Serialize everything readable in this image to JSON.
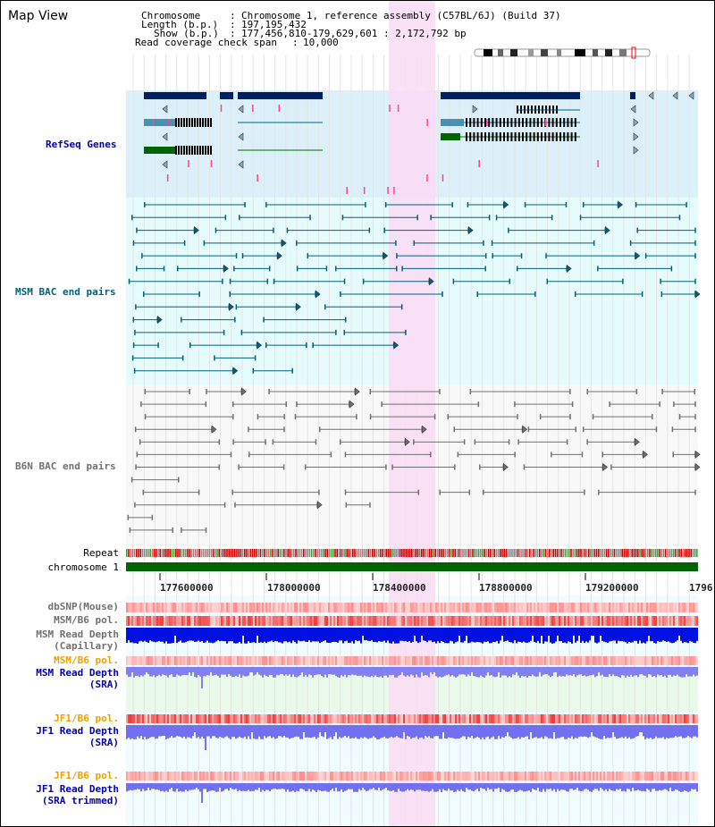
{
  "window_title": "Map View",
  "header": {
    "chromosome_label": "Chromosome",
    "chromosome_value": "Chromosome 1, reference assembly (C57BL/6J) (Build 37)",
    "length_label": "Length (b.p.)",
    "length_value": "197,195,432",
    "show_label": "Show (b.p.)",
    "show_value": "177,456,810-179,629,601 : 2,172,792 bp",
    "coverage_label": "Read coverage check span",
    "coverage_value": "10,000"
  },
  "tracks": {
    "refseq": "RefSeq Genes",
    "msm_bac": "MSM BAC end pairs",
    "b6n_bac": "B6N BAC end pairs",
    "repeat": "Repeat",
    "chromosome": "chromosome 1",
    "dbsnp": "dbSNP(Mouse)",
    "msm_b6_pol": "MSM/B6 pol.",
    "msm_read_depth_cap_1": "MSM Read Depth",
    "msm_read_depth_cap_2": "(Capillary)",
    "msm_b6_pol_2": "MSM/B6 pol.",
    "msm_read_depth_sra_1": "MSM Read Depth",
    "msm_read_depth_sra_2": "(SRA)",
    "jf1_b6_pol": "JF1/B6 pol.",
    "jf1_read_depth_sra_1": "JF1 Read Depth",
    "jf1_read_depth_sra_2": "(SRA)",
    "jf1_b6_pol_2": "JF1/B6 pol.",
    "jf1_read_depth_trim_1": "JF1 Read Depth",
    "jf1_read_depth_trim_2": "(SRA trimmed)"
  },
  "axis": {
    "ticks": [
      "177600000",
      "178000000",
      "178400000",
      "178800000",
      "179200000",
      "1796"
    ]
  },
  "colors": {
    "refseq_bg": "#dcf0fa",
    "msm_bg": "#e6fcfc",
    "b6n_bg": "#f8f8f8",
    "highlight": "#fadcf5",
    "chromosome_bar": "#006400",
    "gene_dark": "#002060",
    "gene_teal": "#4a90b0",
    "gene_green": "#006400",
    "msm_line": "#006080",
    "b6n_line": "#707070"
  }
}
